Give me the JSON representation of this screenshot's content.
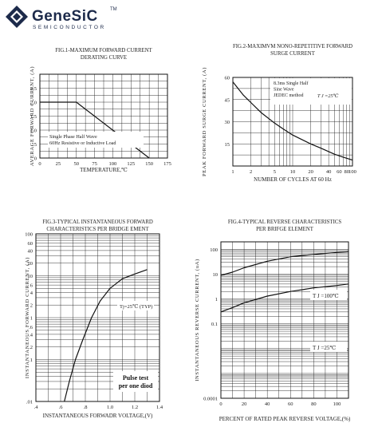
{
  "brand": {
    "name": "GeneSiC",
    "tm": "TM",
    "tagline": "SEMICONDUCTOR",
    "logo_icon": "diamond-hexagon-logo"
  },
  "chart_data": [
    {
      "id": "fig1",
      "type": "line",
      "title_lines": [
        "FIG.1-MAXIMUM FORWARD CURRENT",
        "DERATING CURVE"
      ],
      "xlabel": "TEMPERATURE,℃",
      "ylabel": "AVERAGE FORWARD CURRENT, (A)",
      "xlim": [
        0,
        175
      ],
      "ylim": [
        0,
        3.0
      ],
      "xticks": [
        0,
        25,
        50,
        75,
        100,
        125,
        150,
        175
      ],
      "yticks": [
        0,
        0.5,
        1.0,
        1.5,
        2.0,
        2.5
      ],
      "yticklabels": [
        "0",
        ".5",
        "1.0",
        "1.5",
        "2.0",
        "2.5"
      ],
      "grid": true,
      "series": [
        {
          "x": [
            0,
            50,
            150
          ],
          "y": [
            2.0,
            2.0,
            0
          ]
        }
      ],
      "annotation_lines": [
        "Single Phase Half Wave",
        "60Hz Resistive or Inductive Load"
      ]
    },
    {
      "id": "fig2",
      "type": "line",
      "xscale": "log",
      "title_lines": [
        "FIG.2-MAXIMVM NONO-REPETITIVE FORWARD",
        "SURGE CURRENT"
      ],
      "xlabel": "NUMBER OF CYCLES AT 60 Hz",
      "ylabel": "PEAK FORWARD SURGE CURRENT, (A)",
      "xlim": [
        1,
        100
      ],
      "ylim": [
        0,
        60
      ],
      "xticks": [
        1,
        2,
        5,
        10,
        20,
        40,
        60,
        80,
        100
      ],
      "yticks": [
        15,
        30,
        45,
        60
      ],
      "grid": true,
      "series": [
        {
          "x": [
            1,
            1.5,
            2,
            3,
            5,
            7,
            10,
            20,
            30,
            50,
            70,
            100
          ],
          "y": [
            57,
            48,
            43,
            36,
            29,
            25,
            21,
            15,
            12,
            8,
            6,
            4
          ]
        }
      ],
      "annotation_lines": [
        "8.3ms Single Half",
        "Sine Wave",
        "JEDEC method"
      ],
      "condition": "T J =25℃"
    },
    {
      "id": "fig3",
      "type": "line",
      "yscale": "log",
      "title_lines": [
        "FIG.3-TYPICAL INSTANTANEOUS FORWARD",
        "CHARACTERISTICS PER BRIDGE EMENT"
      ],
      "xlabel": "INSTANTANEOUS FORWADR VOLTAGE,(V)",
      "ylabel": "INSTANTANEOUS FORWARD CURRENT, (A)",
      "xlim": [
        0.4,
        1.4
      ],
      "ylim": [
        0.01,
        100
      ],
      "xticks": [
        0.4,
        0.6,
        0.8,
        1.0,
        1.2,
        1.4
      ],
      "xticklabels": [
        ".4",
        ".6",
        ".8",
        "1.0",
        "1.2",
        "1.4"
      ],
      "yticks": [
        0.01,
        0.1,
        0.2,
        0.4,
        0.6,
        1,
        2,
        4,
        6,
        10,
        20,
        40,
        60,
        100
      ],
      "yticklabels": [
        ".01",
        ".1",
        ".2",
        ".4",
        ".6",
        "1",
        "2",
        "4",
        "6",
        "10",
        "20",
        "40",
        "60",
        "100"
      ],
      "grid": true,
      "series": [
        {
          "x": [
            0.63,
            0.67,
            0.72,
            0.78,
            0.85,
            0.92,
            1.0,
            1.1,
            1.2,
            1.3
          ],
          "y": [
            0.01,
            0.03,
            0.1,
            0.3,
            1,
            2.5,
            5,
            8.5,
            11,
            14
          ]
        }
      ],
      "condition": "Tj=25℃ (TYP)",
      "annotation_lines": [
        "Pulse test",
        "per one diod"
      ]
    },
    {
      "id": "fig4",
      "type": "line",
      "yscale": "log",
      "title_lines": [
        "FIG.4-TYPICAL REVERSE CHARACTERISTICS",
        "PER BRIFGE ELEMENT"
      ],
      "xlabel": "PERCENT OF RATED PEAK REVERSE VOLTAGE,(%)",
      "ylabel": "INSTANTANEOUS REVERSE CURRENT, (uA)",
      "xlim": [
        0,
        110
      ],
      "ylim": [
        0.0001,
        200
      ],
      "xticks": [
        0,
        20,
        40,
        60,
        80,
        100
      ],
      "yticks": [
        0.0001,
        0.1,
        1,
        10,
        100
      ],
      "yticklabels": [
        "0.0001",
        "0.1",
        "1",
        "10",
        "100"
      ],
      "grid": true,
      "series": [
        {
          "name": "T J =100℃",
          "x": [
            0,
            10,
            20,
            40,
            60,
            80,
            100,
            110
          ],
          "y": [
            9,
            12,
            18,
            33,
            50,
            62,
            75,
            80
          ]
        },
        {
          "name": "T J =25℃",
          "x": [
            0,
            10,
            20,
            40,
            60,
            80,
            100,
            110
          ],
          "y": [
            0.3,
            0.45,
            0.7,
            1.3,
            2.0,
            2.8,
            3.5,
            4.0
          ]
        }
      ]
    }
  ]
}
